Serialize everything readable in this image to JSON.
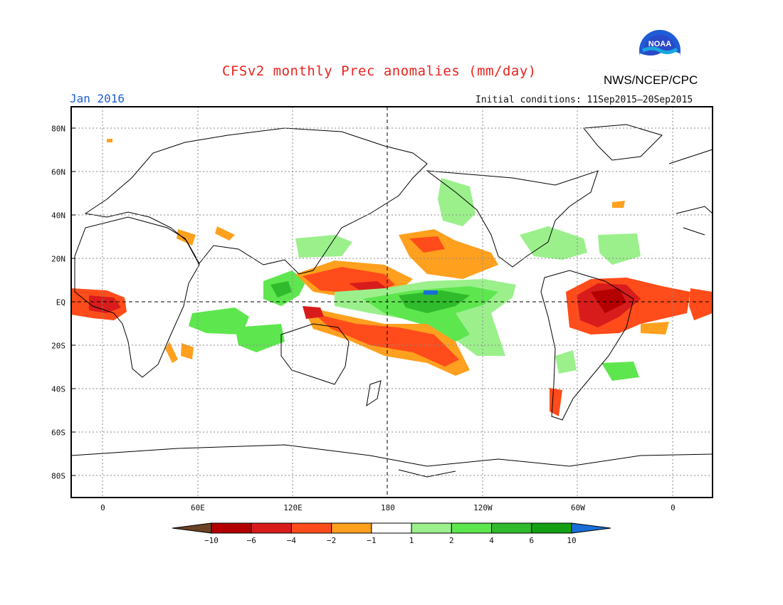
{
  "header": {
    "title": "CFSv2 monthly Prec anomalies (mm/day)",
    "agency": "NWS/NCEP/CPC",
    "logo_text": "NOAA",
    "month": "Jan 2016",
    "initial_conditions": "Initial conditions: 11Sep2015–20Sep2015"
  },
  "map": {
    "lat_labels": [
      {
        "lat": 80,
        "label": "80N"
      },
      {
        "lat": 60,
        "label": "60N"
      },
      {
        "lat": 40,
        "label": "40N"
      },
      {
        "lat": 20,
        "label": "20N"
      },
      {
        "lat": 0,
        "label": "EQ"
      },
      {
        "lat": -20,
        "label": "20S"
      },
      {
        "lat": -40,
        "label": "40S"
      },
      {
        "lat": -60,
        "label": "60S"
      },
      {
        "lat": -80,
        "label": "80S"
      }
    ],
    "lon_labels": [
      {
        "lon": 0,
        "label": "0"
      },
      {
        "lon": 60,
        "label": "60E"
      },
      {
        "lon": 120,
        "label": "120E"
      },
      {
        "lon": 180,
        "label": "180"
      },
      {
        "lon": 240,
        "label": "120W"
      },
      {
        "lon": 300,
        "label": "60W"
      },
      {
        "lon": 360,
        "label": "0"
      }
    ],
    "lon_range": [
      -20,
      385
    ],
    "lat_range": [
      -90,
      90
    ]
  },
  "colorbar": {
    "colors": [
      "#6b4226",
      "#b40000",
      "#d81c1c",
      "#ff4c1a",
      "#ffa01e",
      "#ffffff",
      "#9bf08c",
      "#5ee64f",
      "#2fbb2c",
      "#12a012",
      "#1a6ed8"
    ],
    "labels": [
      "−10",
      "−6",
      "−4",
      "−2",
      "−1",
      "1",
      "2",
      "4",
      "6",
      "10"
    ]
  },
  "anomaly_regions": [
    {
      "region": "west-africa-coast",
      "level": -4,
      "color": "#ff4c1a"
    },
    {
      "region": "northern-south-america",
      "level": -6,
      "color": "#b40000"
    },
    {
      "region": "north-tropical-pacific",
      "level": -4,
      "color": "#ff4c1a"
    },
    {
      "region": "south-pacific-convergence",
      "level": -4,
      "color": "#ff4c1a"
    },
    {
      "region": "central-equatorial-pacific",
      "level": 6,
      "color": "#2fbb2c"
    },
    {
      "region": "maritime-continent",
      "level": 2,
      "color": "#5ee64f"
    }
  ]
}
